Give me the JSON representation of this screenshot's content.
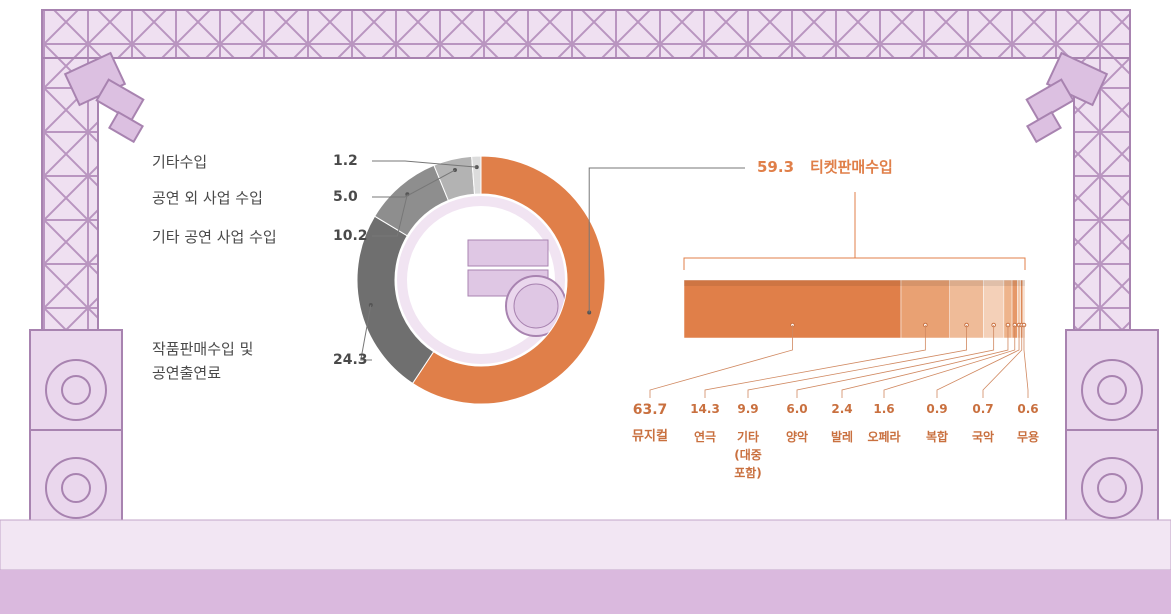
{
  "chart_data": [
    {
      "type": "donut",
      "categories": [
        "티켓판매수입",
        "작품판매수입 및 공연출연료",
        "기타 공연 사업 수입",
        "공연 외 사업 수입",
        "기타수입"
      ],
      "values": [
        59.3,
        24.3,
        10.2,
        5.0,
        1.2
      ],
      "value_labels": [
        "59.3",
        "24.3",
        "10.2",
        "5.0",
        "1.2"
      ],
      "colors": [
        "#e07f49",
        "#6f6f6f",
        "#8e8e8e",
        "#b3b3b3",
        "#dcdcdc"
      ]
    },
    {
      "type": "stacked-bar",
      "categories": [
        "뮤지컬",
        "연극",
        "기타 (대중 포함)",
        "양악",
        "발레",
        "오페라",
        "복합",
        "국악",
        "무용"
      ],
      "values": [
        63.7,
        14.3,
        9.9,
        6.0,
        2.4,
        1.6,
        0.9,
        0.7,
        0.6
      ],
      "value_labels": [
        "63.7",
        "14.3",
        "9.9",
        "6.0",
        "2.4",
        "1.6",
        "0.9",
        "0.7",
        "0.6"
      ],
      "colors": [
        "#e07f49",
        "#e9a173",
        "#efbb98",
        "#f4d0b8",
        "#eeb48c",
        "#e69868",
        "#f3c9ac",
        "#dd8a58",
        "#f7dcc9"
      ]
    }
  ]
}
